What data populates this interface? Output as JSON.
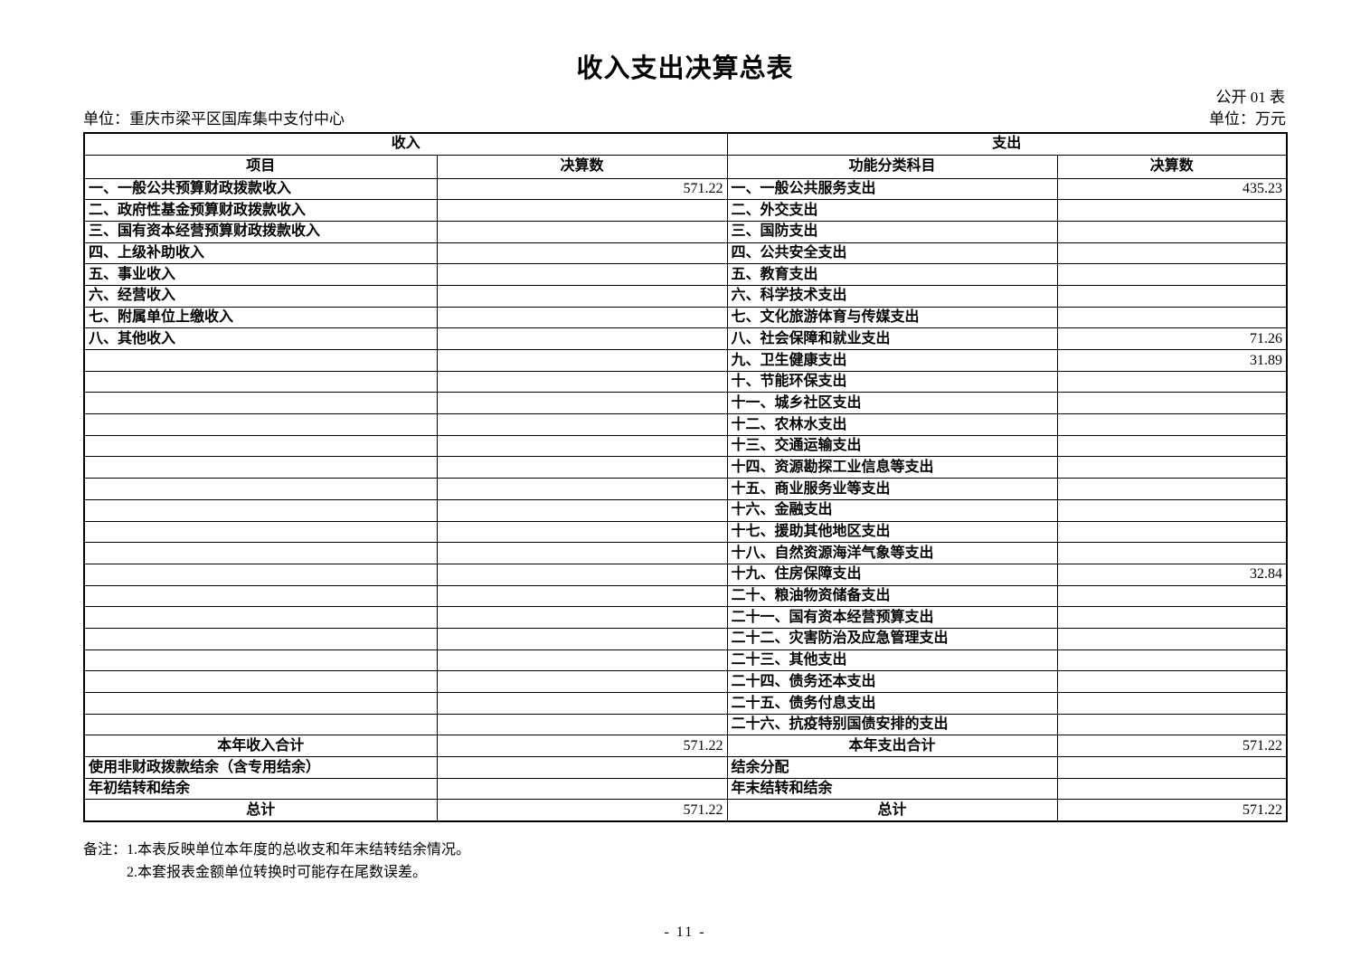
{
  "title": "收入支出决算总表",
  "meta": {
    "sheet_label": "公开 01 表",
    "unit_name": "单位：重庆市梁平区国库集中支付中心",
    "unit_measure": "单位：万元"
  },
  "table": {
    "section_headers": {
      "income": "收入",
      "expenditure": "支出"
    },
    "column_headers": {
      "income_item": "项目",
      "income_amount": "决算数",
      "exp_item": "功能分类科目",
      "exp_amount": "决算数"
    },
    "rows": [
      {
        "income_item": "一、一般公共预算财政拨款收入",
        "income_value": "571.22",
        "exp_item": "一、一般公共服务支出",
        "exp_value": "435.23"
      },
      {
        "income_item": "二、政府性基金预算财政拨款收入",
        "income_value": "",
        "exp_item": "二、外交支出",
        "exp_value": ""
      },
      {
        "income_item": "三、国有资本经营预算财政拨款收入",
        "income_value": "",
        "exp_item": "三、国防支出",
        "exp_value": ""
      },
      {
        "income_item": "四、上级补助收入",
        "income_value": "",
        "exp_item": "四、公共安全支出",
        "exp_value": ""
      },
      {
        "income_item": "五、事业收入",
        "income_value": "",
        "exp_item": "五、教育支出",
        "exp_value": ""
      },
      {
        "income_item": "六、经营收入",
        "income_value": "",
        "exp_item": "六、科学技术支出",
        "exp_value": ""
      },
      {
        "income_item": "七、附属单位上缴收入",
        "income_value": "",
        "exp_item": "七、文化旅游体育与传媒支出",
        "exp_value": ""
      },
      {
        "income_item": "八、其他收入",
        "income_value": "",
        "exp_item": "八、社会保障和就业支出",
        "exp_value": "71.26"
      },
      {
        "income_item": "",
        "income_value": "",
        "exp_item": "九、卫生健康支出",
        "exp_value": "31.89"
      },
      {
        "income_item": "",
        "income_value": "",
        "exp_item": "十、节能环保支出",
        "exp_value": ""
      },
      {
        "income_item": "",
        "income_value": "",
        "exp_item": "十一、城乡社区支出",
        "exp_value": ""
      },
      {
        "income_item": "",
        "income_value": "",
        "exp_item": "十二、农林水支出",
        "exp_value": ""
      },
      {
        "income_item": "",
        "income_value": "",
        "exp_item": "十三、交通运输支出",
        "exp_value": ""
      },
      {
        "income_item": "",
        "income_value": "",
        "exp_item": "十四、资源勘探工业信息等支出",
        "exp_value": ""
      },
      {
        "income_item": "",
        "income_value": "",
        "exp_item": "十五、商业服务业等支出",
        "exp_value": ""
      },
      {
        "income_item": "",
        "income_value": "",
        "exp_item": "十六、金融支出",
        "exp_value": ""
      },
      {
        "income_item": "",
        "income_value": "",
        "exp_item": "十七、援助其他地区支出",
        "exp_value": ""
      },
      {
        "income_item": "",
        "income_value": "",
        "exp_item": "十八、自然资源海洋气象等支出",
        "exp_value": ""
      },
      {
        "income_item": "",
        "income_value": "",
        "exp_item": "十九、住房保障支出",
        "exp_value": "32.84"
      },
      {
        "income_item": "",
        "income_value": "",
        "exp_item": "二十、粮油物资储备支出",
        "exp_value": ""
      },
      {
        "income_item": "",
        "income_value": "",
        "exp_item": "二十一、国有资本经营预算支出",
        "exp_value": ""
      },
      {
        "income_item": "",
        "income_value": "",
        "exp_item": "二十二、灾害防治及应急管理支出",
        "exp_value": ""
      },
      {
        "income_item": "",
        "income_value": "",
        "exp_item": "二十三、其他支出",
        "exp_value": ""
      },
      {
        "income_item": "",
        "income_value": "",
        "exp_item": "二十四、债务还本支出",
        "exp_value": ""
      },
      {
        "income_item": "",
        "income_value": "",
        "exp_item": "二十五、债务付息支出",
        "exp_value": ""
      },
      {
        "income_item": "",
        "income_value": "",
        "exp_item": "二十六、抗疫特别国债安排的支出",
        "exp_value": ""
      },
      {
        "income_item": "本年收入合计",
        "income_value": "571.22",
        "exp_item": "本年支出合计",
        "exp_value": "571.22",
        "align": "center"
      },
      {
        "income_item": "使用非财政拨款结余（含专用结余）",
        "income_value": "",
        "exp_item": "结余分配",
        "exp_value": ""
      },
      {
        "income_item": "年初结转和结余",
        "income_value": "",
        "exp_item": "年末结转和结余",
        "exp_value": ""
      },
      {
        "income_item": "总计",
        "income_value": "571.22",
        "exp_item": "总计",
        "exp_value": "571.22",
        "align": "center"
      }
    ]
  },
  "notes": {
    "label": "备注：",
    "line1": "1.本表反映单位本年度的总收支和年末结转结余情况。",
    "line2": "2.本套报表金额单位转换时可能存在尾数误差。"
  },
  "page_number": "- 11 -"
}
